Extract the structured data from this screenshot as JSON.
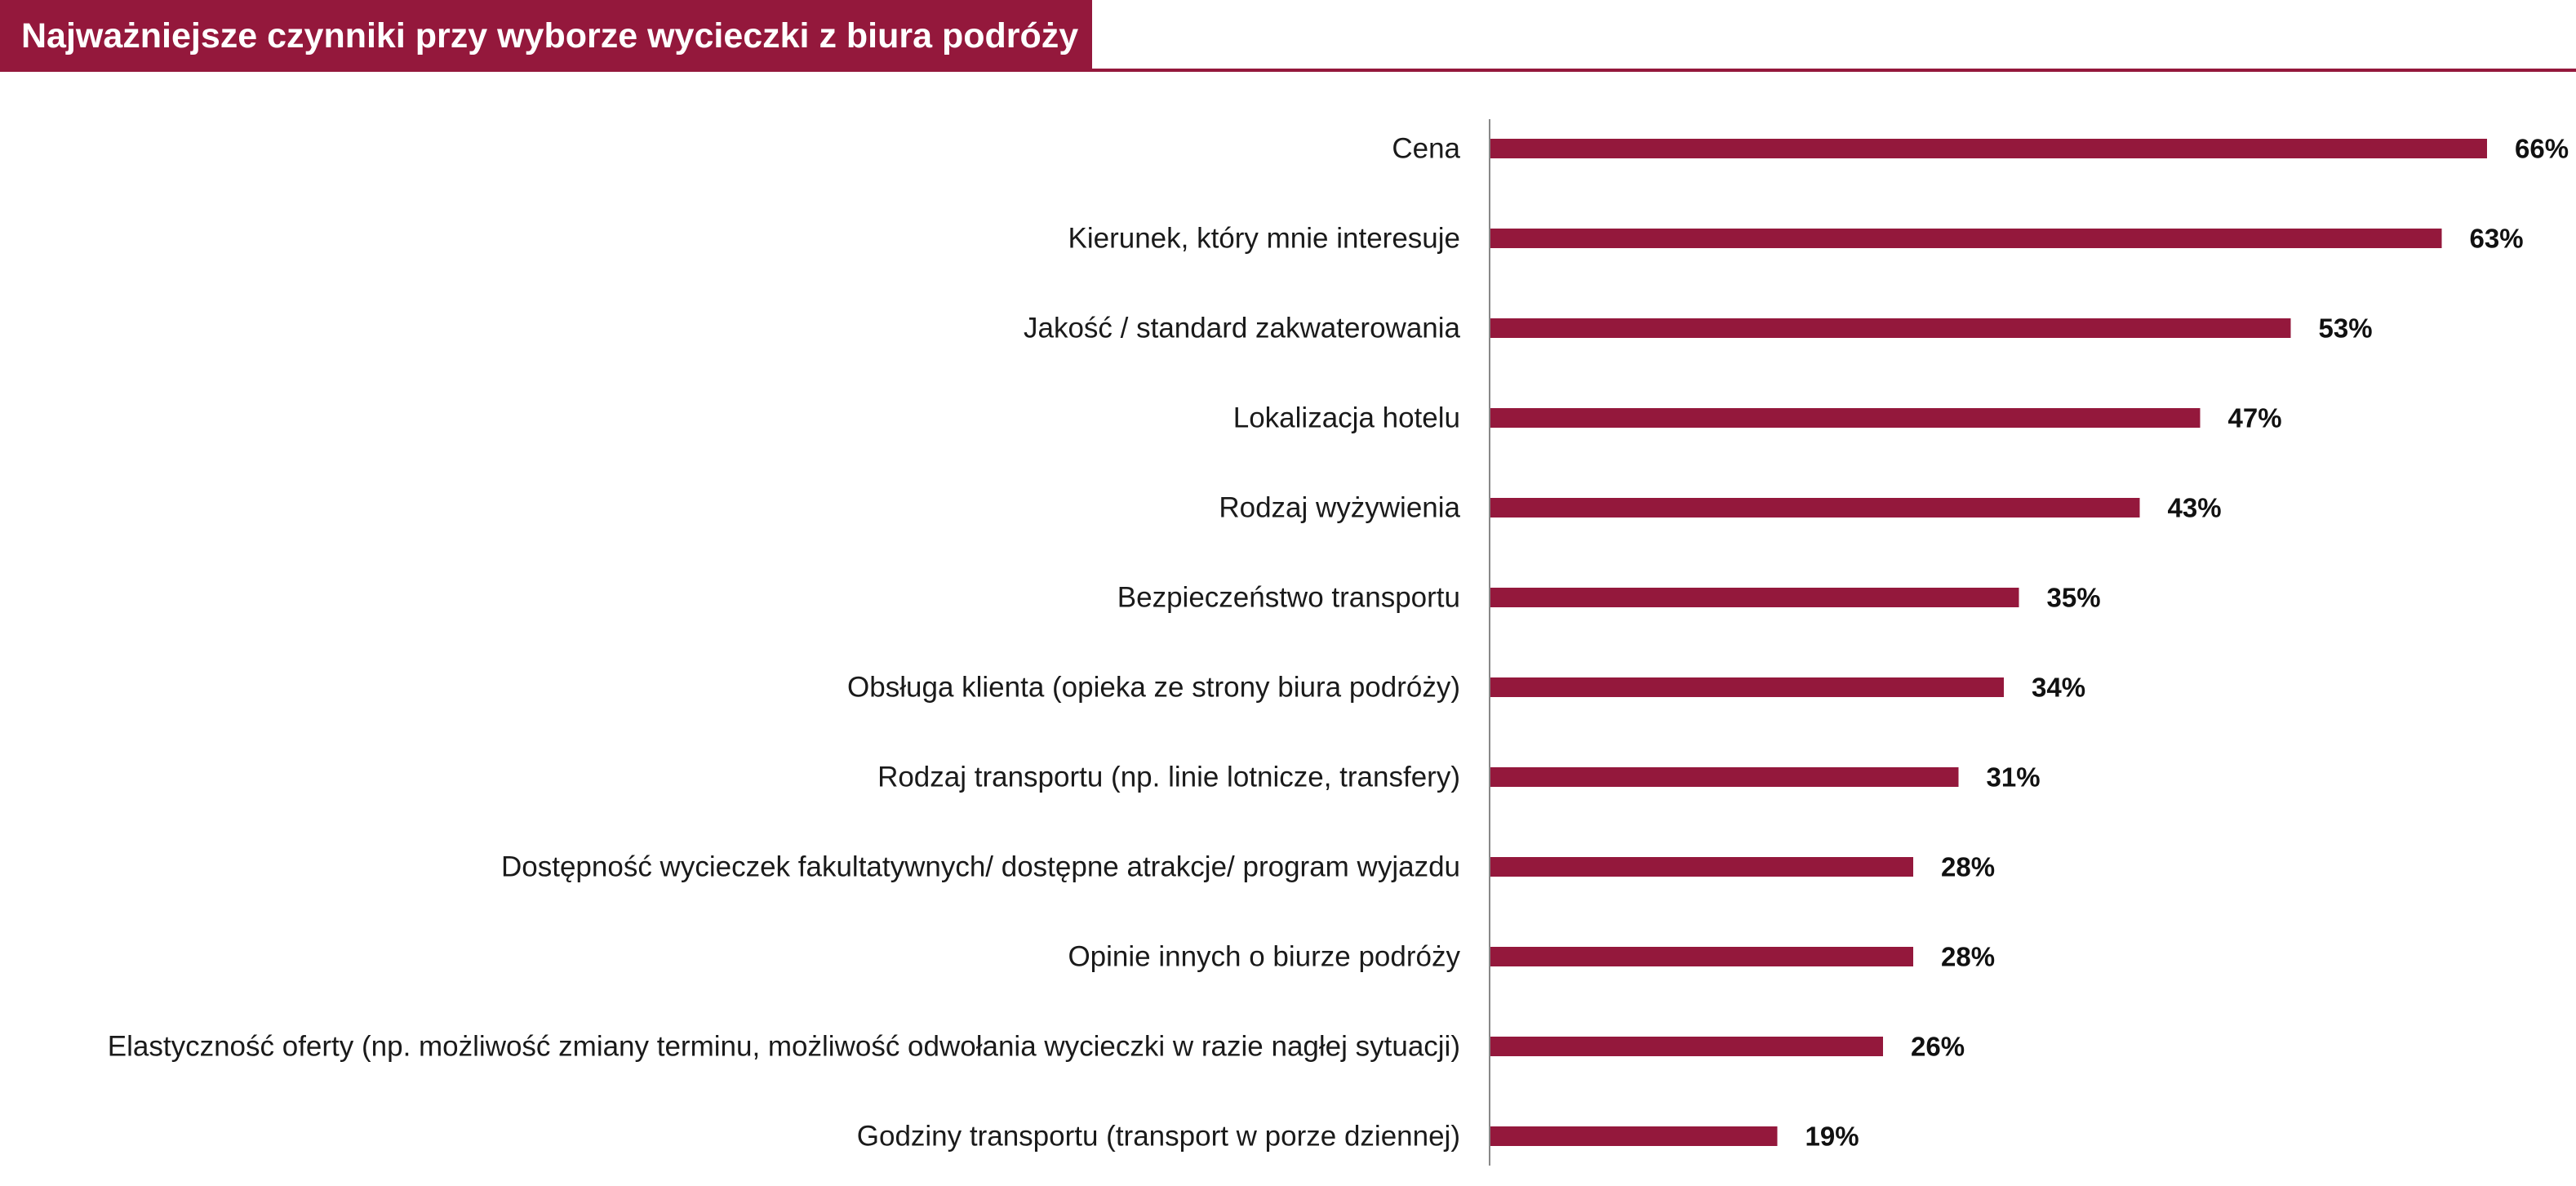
{
  "header": {
    "title": "Najważniejsze czynniki przy wyborze wycieczki z biura podróży"
  },
  "colors": {
    "accent": "#94183c",
    "bar": "#94183c",
    "axis": "#888888"
  },
  "chart_data": {
    "type": "bar",
    "orientation": "horizontal",
    "title": "Najważniejsze czynniki przy wyborze wycieczki z biura podróży",
    "xlabel": "",
    "ylabel": "",
    "xlim": [
      0,
      70
    ],
    "grid": false,
    "value_suffix": "%",
    "categories": [
      "Cena",
      "Kierunek, który mnie interesuje",
      "Jakość / standard zakwaterowania",
      "Lokalizacja hotelu",
      "Rodzaj wyżywienia",
      "Bezpieczeństwo transportu",
      "Obsługa klienta (opieka ze strony biura podróży)",
      "Rodzaj transportu (np. linie lotnicze, transfery)",
      "Dostępność wycieczek fakultatywnych/ dostępne atrakcje/ program wyjazdu",
      "Opinie innych o biurze podróży",
      "Elastyczność oferty (np. możliwość zmiany terminu, możliwość odwołania wycieczki w razie nagłej sytuacji)",
      "Godziny transportu (transport w porze dziennej)"
    ],
    "values": [
      66,
      63,
      53,
      47,
      43,
      35,
      34,
      31,
      28,
      28,
      26,
      19
    ],
    "value_labels": [
      "66%",
      "63%",
      "53%",
      "47%",
      "43%",
      "35%",
      "34%",
      "31%",
      "28%",
      "28%",
      "26%",
      "19%"
    ]
  }
}
